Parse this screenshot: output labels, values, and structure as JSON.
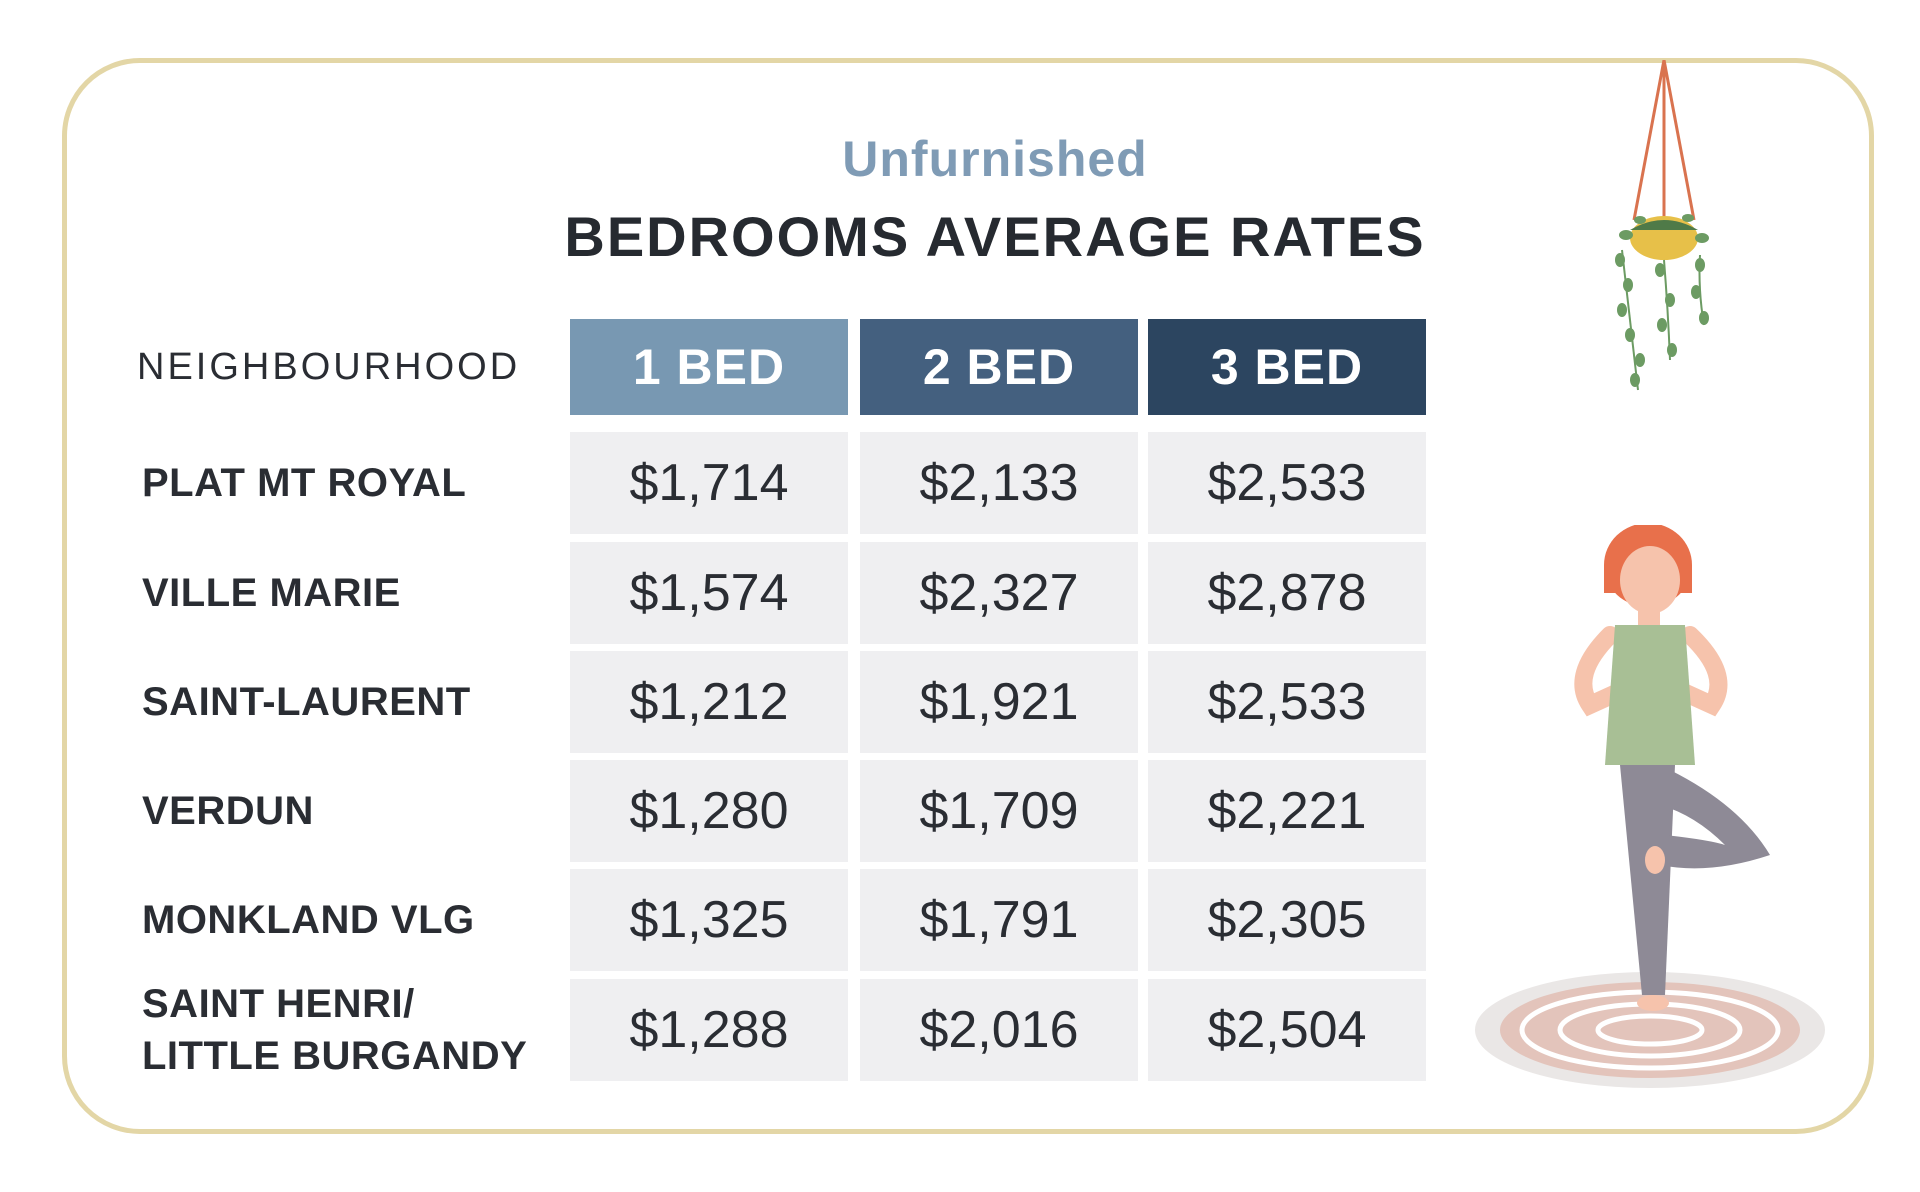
{
  "chart_data": {
    "type": "table",
    "subtitle": "Unfurnished",
    "title": "BEDROOMS AVERAGE RATES",
    "row_header_label": "NEIGHBOURHOOD",
    "columns": [
      {
        "label": "1 BED",
        "color": "#7898b2"
      },
      {
        "label": "2 BED",
        "color": "#44607f"
      },
      {
        "label": "3 BED",
        "color": "#2c4560"
      }
    ],
    "rows": [
      {
        "label": "PLAT MT ROYAL",
        "values": [
          "$1,714",
          "$2,133",
          "$2,533"
        ]
      },
      {
        "label": "VILLE MARIE",
        "values": [
          "$1,574",
          "$2,327",
          "$2,878"
        ]
      },
      {
        "label": "SAINT-LAURENT",
        "values": [
          "$1,212",
          "$1,921",
          "$2,533"
        ]
      },
      {
        "label": "VERDUN",
        "values": [
          "$1,280",
          "$1,709",
          "$2,221"
        ]
      },
      {
        "label": "MONKLAND VLG",
        "values": [
          "$1,325",
          "$1,791",
          "$2,305"
        ]
      },
      {
        "label": "SAINT HENRI/\nLITTLE BURGANDY",
        "values": [
          "$1,288",
          "$2,016",
          "$2,504"
        ]
      }
    ]
  },
  "decorations": {
    "hanging_plant": "hanging-plant-illustration",
    "person": "yoga-woman-illustration"
  }
}
